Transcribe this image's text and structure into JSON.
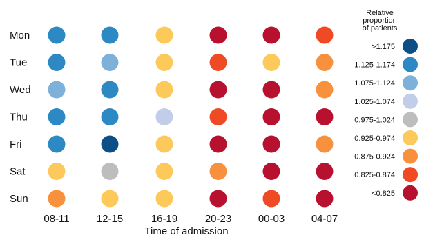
{
  "chart_data": {
    "type": "heatmap",
    "title": "",
    "xlabel": "Time of admission",
    "ylabel": "",
    "categories": [
      "08-11",
      "12-15",
      "16-19",
      "20-23",
      "00-03",
      "04-07"
    ],
    "rows": [
      "Mon",
      "Tue",
      "Wed",
      "Thu",
      "Fri",
      "Sat",
      "Sun"
    ],
    "legend": {
      "title": [
        "Relative",
        "proportion",
        "of patients"
      ],
      "placement": "right",
      "bins": [
        {
          "label": ">1.175",
          "color": "#0b4f86"
        },
        {
          "label": "1.125-1.174",
          "color": "#2d89c3"
        },
        {
          "label": "1.075-1.124",
          "color": "#7eb1da"
        },
        {
          "label": "1.025-1.074",
          "color": "#c2cdea"
        },
        {
          "label": "0.975-1.024",
          "color": "#bdbdbd"
        },
        {
          "label": "0.925-0.974",
          "color": "#fcc95a"
        },
        {
          "label": "0.875-0.924",
          "color": "#f7913d"
        },
        {
          "label": "0.825-0.874",
          "color": "#ef4a24"
        },
        {
          "label": "<0.825",
          "color": "#b8102f"
        }
      ]
    },
    "bin_index": [
      [
        1,
        1,
        5,
        8,
        8,
        7
      ],
      [
        1,
        2,
        5,
        7,
        5,
        6
      ],
      [
        2,
        1,
        5,
        8,
        8,
        6
      ],
      [
        1,
        1,
        3,
        7,
        8,
        8
      ],
      [
        1,
        0,
        5,
        8,
        8,
        6
      ],
      [
        5,
        4,
        5,
        6,
        8,
        8
      ],
      [
        6,
        5,
        5,
        8,
        7,
        8
      ]
    ]
  }
}
